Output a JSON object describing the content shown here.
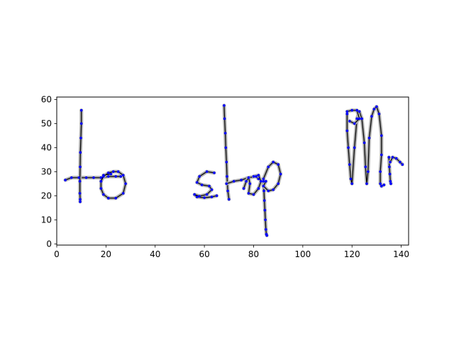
{
  "chart_data": {
    "type": "scatter",
    "title": "",
    "xlabel": "",
    "ylabel": "",
    "xlim": [
      0,
      143
    ],
    "ylim": [
      -0.5,
      61
    ],
    "xticks": [
      0,
      20,
      40,
      60,
      80,
      100,
      120,
      140
    ],
    "yticks": [
      0,
      10,
      20,
      30,
      40,
      50,
      60
    ],
    "xtick_labels": [
      "0",
      "20",
      "40",
      "60",
      "80",
      "100",
      "120",
      "140"
    ],
    "ytick_labels": [
      "0",
      "10",
      "20",
      "30",
      "40",
      "50",
      "60"
    ],
    "grid": false,
    "legend": "none",
    "colors": {
      "points": "#0000ff",
      "stroke_halo": "#b0b0b0",
      "stroke_line": "#000000"
    },
    "strokes": [
      {
        "x": [
          3.5,
          6,
          9,
          12,
          15,
          18,
          21,
          24,
          26
        ],
        "y": [
          26.5,
          27.5,
          27.5,
          27.5,
          27.5,
          27.5,
          28,
          28,
          28
        ]
      },
      {
        "x": [
          10,
          10,
          9.8,
          9.6,
          9.5,
          9.4,
          9.4,
          9.5,
          9.5
        ],
        "y": [
          55.5,
          50,
          44,
          38,
          32,
          26,
          21,
          18.5,
          17.5
        ]
      },
      {
        "x": [
          22,
          19,
          18,
          18,
          19,
          21,
          24,
          27,
          28,
          27,
          25,
          23,
          21,
          19,
          18
        ],
        "y": [
          29,
          28.5,
          26,
          23,
          20.5,
          19,
          19,
          21,
          25,
          28.5,
          30,
          30,
          29.5,
          28,
          26
        ]
      },
      {
        "x": [
          64,
          61,
          58,
          57,
          59,
          62,
          63,
          61,
          58,
          56,
          57,
          60,
          63,
          65
        ],
        "y": [
          29.5,
          30,
          28,
          25.5,
          24.5,
          24,
          22.5,
          20.5,
          19.8,
          20.5,
          19.5,
          19.2,
          19.5,
          20
        ]
      },
      {
        "x": [
          68,
          68.2,
          68.5,
          68.7,
          69,
          69.2,
          69.5,
          70
        ],
        "y": [
          57.5,
          52,
          46,
          40,
          34,
          28,
          22,
          18.5
        ]
      },
      {
        "x": [
          69,
          72,
          75,
          78,
          81,
          82
        ],
        "y": [
          25,
          26,
          26.5,
          27.5,
          28,
          27
        ]
      },
      {
        "x": [
          76,
          77,
          78,
          78.5,
          78,
          80,
          82,
          83,
          82,
          80
        ],
        "y": [
          23,
          26,
          27.5,
          25,
          21,
          20.5,
          23,
          26,
          28.5,
          28
        ]
      },
      {
        "x": [
          84,
          84.2,
          84.4,
          84.6,
          84.8,
          85,
          85.2,
          85.4
        ],
        "y": [
          26,
          22,
          18,
          14,
          10,
          6,
          4,
          3.5
        ]
      },
      {
        "x": [
          84,
          86,
          88,
          90,
          91,
          90,
          88,
          86,
          84,
          85
        ],
        "y": [
          27,
          32,
          34,
          33,
          29,
          25,
          22.5,
          22,
          24,
          26
        ]
      },
      {
        "x": [
          118,
          118,
          118.5,
          119,
          119.5,
          120,
          121,
          122,
          123,
          124,
          125,
          125.5,
          126,
          126.5,
          127,
          128,
          129,
          130,
          131,
          132,
          132,
          131.5,
          131.5,
          132,
          133
        ],
        "y": [
          54,
          47,
          40,
          33,
          27,
          25,
          40,
          52,
          55,
          52,
          42,
          32,
          25,
          30,
          44,
          53,
          56,
          57,
          54,
          45,
          37,
          30,
          25,
          24,
          24.5
        ]
      },
      {
        "x": [
          118,
          120,
          122,
          123,
          121,
          119
        ],
        "y": [
          55,
          55.5,
          55.5,
          52,
          50,
          51
        ]
      },
      {
        "x": [
          135,
          135.2,
          135.4,
          135.6,
          135.8
        ],
        "y": [
          36,
          32,
          29,
          26,
          25
        ]
      },
      {
        "x": [
          135.5,
          136.5,
          138,
          139.5,
          140.5
        ],
        "y": [
          34,
          36,
          35.5,
          34,
          33
        ]
      }
    ]
  }
}
